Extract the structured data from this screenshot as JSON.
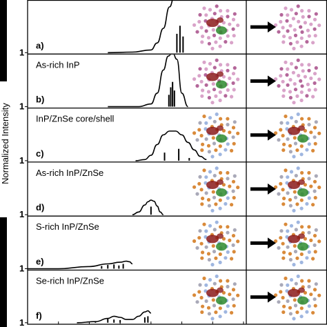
{
  "chart_data": {
    "type": "line",
    "ylabel": "Normalized Intensity",
    "x_ticks": [
      "1.0",
      "1.5",
      "2.0",
      "2.5",
      "3.0",
      "3.5",
      "4.0",
      "4.5"
    ],
    "xlim": [
      1.0,
      4.5
    ],
    "panels": [
      {
        "letter": "a)",
        "title": "",
        "ytick": "1",
        "curve": {
          "x": [
            2.3,
            2.7,
            3.0,
            3.1,
            3.2,
            3.3,
            3.38
          ],
          "y": [
            0.0,
            0.01,
            0.05,
            0.18,
            0.45,
            0.85,
            1.05
          ]
        },
        "sticks": [
          {
            "x": 3.42,
            "h": 0.35
          },
          {
            "x": 3.47,
            "h": 0.5
          },
          {
            "x": 3.52,
            "h": 0.3
          }
        ],
        "orbital_style": "pink"
      },
      {
        "letter": "b)",
        "title": "As-rich InP",
        "ytick": "1",
        "curve": {
          "x": [
            2.3,
            2.8,
            3.0,
            3.1,
            3.2,
            3.28,
            3.35,
            3.42,
            3.5,
            3.6
          ],
          "y": [
            0.0,
            0.0,
            0.05,
            0.25,
            0.68,
            0.94,
            1.0,
            0.88,
            0.25,
            0.0
          ]
        },
        "sticks": [
          {
            "x": 3.29,
            "h": 0.22
          },
          {
            "x": 3.32,
            "h": 0.36
          },
          {
            "x": 3.35,
            "h": 0.46
          },
          {
            "x": 3.38,
            "h": 0.3
          }
        ],
        "orbital_style": "pink"
      },
      {
        "letter": "c)",
        "title": "InP/ZnSe core/shell",
        "ytick": "1",
        "curve": {
          "x": [
            2.75,
            2.9,
            3.0,
            3.1,
            3.2,
            3.3,
            3.4,
            3.5,
            3.6,
            3.7,
            3.8,
            3.9
          ],
          "y": [
            0.0,
            0.02,
            0.1,
            0.3,
            0.48,
            0.55,
            0.55,
            0.48,
            0.34,
            0.2,
            0.08,
            0.02
          ]
        },
        "sticks": [
          {
            "x": 3.22,
            "h": 0.15
          },
          {
            "x": 3.45,
            "h": 0.22
          },
          {
            "x": 3.62,
            "h": 0.05
          }
        ],
        "orbital_style": "orange"
      },
      {
        "letter": "d)",
        "title": "As-rich InP/ZnSe",
        "ytick": "1",
        "curve": {
          "x": [
            2.7,
            2.8,
            2.9,
            2.95,
            3.0,
            3.05,
            3.1,
            3.15,
            3.2
          ],
          "y": [
            0.0,
            0.05,
            0.18,
            0.24,
            0.27,
            0.25,
            0.16,
            0.05,
            0.0
          ]
        },
        "sticks": [
          {
            "x": 3.0,
            "h": 0.15
          }
        ],
        "orbital_style": "orange"
      },
      {
        "letter": "e)",
        "title": "S-rich InP/ZnSe",
        "ytick": "1",
        "curve": {
          "x": [
            1.0,
            1.5,
            2.0,
            2.3,
            2.5,
            2.6,
            2.65,
            2.7
          ],
          "y": [
            0.0,
            0.0,
            0.04,
            0.09,
            0.12,
            0.14,
            0.13,
            0.09
          ]
        },
        "sticks": [
          {
            "x": 2.2,
            "h": 0.05
          },
          {
            "x": 2.3,
            "h": 0.07
          },
          {
            "x": 2.4,
            "h": 0.08
          },
          {
            "x": 2.48,
            "h": 0.06
          },
          {
            "x": 2.55,
            "h": 0.09
          }
        ],
        "orbital_style": "orange"
      },
      {
        "letter": "f)",
        "title": "Se-rich InP/ZnSe",
        "ytick": "1",
        "curve": {
          "x": [
            1.8,
            2.1,
            2.3,
            2.4,
            2.5,
            2.6,
            2.7,
            2.8,
            2.9,
            2.95,
            3.0
          ],
          "y": [
            0.0,
            0.02,
            0.08,
            0.12,
            0.1,
            0.06,
            0.06,
            0.12,
            0.2,
            0.22,
            0.18
          ]
        },
        "sticks": [
          {
            "x": 2.1,
            "h": 0.03
          },
          {
            "x": 2.3,
            "h": 0.08
          },
          {
            "x": 2.4,
            "h": 0.06
          },
          {
            "x": 2.5,
            "h": 0.05
          },
          {
            "x": 2.9,
            "h": 0.1
          },
          {
            "x": 2.95,
            "h": 0.12
          }
        ],
        "orbital_style": "orange"
      }
    ]
  },
  "colors": {
    "curve": "#000000",
    "pink_atom": "#d9a3c9",
    "pink_atom_dark": "#b4679a",
    "orange_atom": "#d98a3a",
    "grey_atom": "#a9a9b8",
    "blue_atom": "#9fb6e0",
    "lobe_red": "#8b1a1a",
    "lobe_green": "#2e8b2e"
  }
}
